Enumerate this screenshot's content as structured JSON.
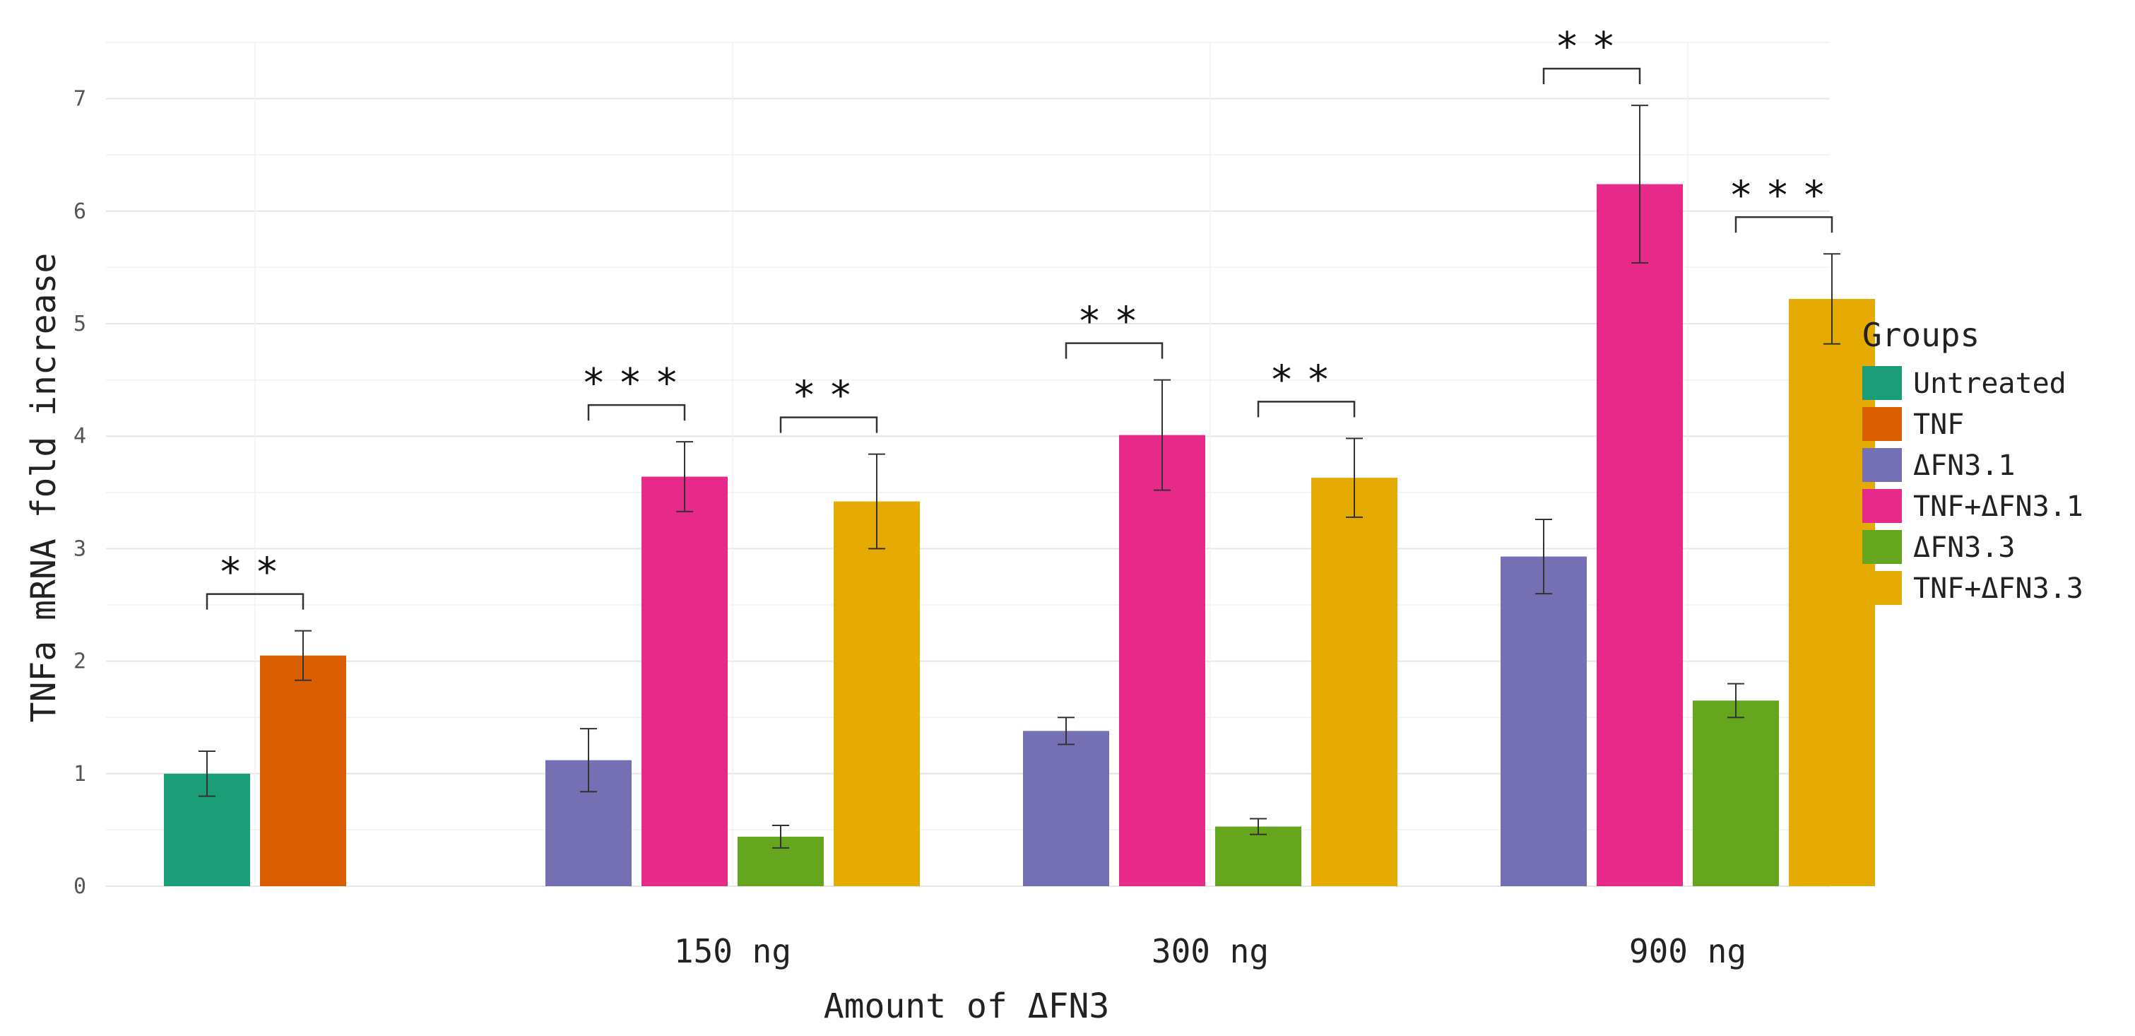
{
  "chart_data": {
    "type": "bar",
    "xlabel": "Amount of ΔFN3",
    "ylabel": "TNFa mRNA fold increase",
    "ylim": [
      0,
      7.5
    ],
    "yticks": [
      0,
      1,
      2,
      3,
      4,
      5,
      6,
      7
    ],
    "grid": true,
    "legend_title": "Groups",
    "legend_position": "right",
    "categories": [
      "",
      "150 ng",
      "300 ng",
      "900 ng"
    ],
    "series": [
      {
        "name": "Untreated",
        "color": "#1b9e77",
        "values": [
          1.0,
          null,
          null,
          null
        ],
        "errors": [
          0.2,
          null,
          null,
          null
        ]
      },
      {
        "name": "TNF",
        "color": "#d95f02",
        "values": [
          2.05,
          null,
          null,
          null
        ],
        "errors": [
          0.22,
          null,
          null,
          null
        ]
      },
      {
        "name": "ΔFN3.1",
        "color": "#7570b3",
        "values": [
          null,
          1.12,
          1.38,
          2.93
        ],
        "errors": [
          null,
          0.28,
          0.12,
          0.33
        ]
      },
      {
        "name": "TNF+ΔFN3.1",
        "color": "#e7298a",
        "values": [
          null,
          3.64,
          4.01,
          6.24
        ],
        "errors": [
          null,
          0.31,
          0.49,
          0.7
        ]
      },
      {
        "name": "ΔFN3.3",
        "color": "#66a61e",
        "values": [
          null,
          0.44,
          0.53,
          1.65
        ],
        "errors": [
          null,
          0.1,
          0.07,
          0.15
        ]
      },
      {
        "name": "TNF+ΔFN3.3",
        "color": "#e6ab02",
        "values": [
          null,
          3.42,
          3.63,
          5.22
        ],
        "errors": [
          null,
          0.42,
          0.35,
          0.4
        ]
      }
    ],
    "annotations": [
      {
        "group": 0,
        "from_series": 0,
        "to_series": 1,
        "label": "**"
      },
      {
        "group": 1,
        "from_series": 2,
        "to_series": 3,
        "label": "***"
      },
      {
        "group": 1,
        "from_series": 4,
        "to_series": 5,
        "label": "**"
      },
      {
        "group": 2,
        "from_series": 2,
        "to_series": 3,
        "label": "**"
      },
      {
        "group": 2,
        "from_series": 4,
        "to_series": 5,
        "label": "**"
      },
      {
        "group": 3,
        "from_series": 2,
        "to_series": 3,
        "label": "**"
      },
      {
        "group": 3,
        "from_series": 4,
        "to_series": 5,
        "label": "***"
      }
    ]
  }
}
